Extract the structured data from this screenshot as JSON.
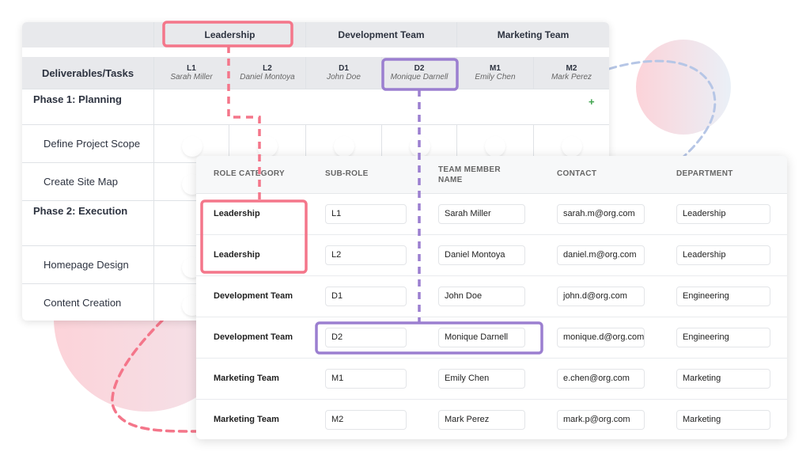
{
  "matrix": {
    "groups": [
      "Leadership",
      "Development Team",
      "Marketing Team"
    ],
    "tasks_header": "Deliverables/Tasks",
    "roles": [
      {
        "code": "L1",
        "name": "Sarah Miller"
      },
      {
        "code": "L2",
        "name": "Daniel Montoya"
      },
      {
        "code": "D1",
        "name": "John Doe"
      },
      {
        "code": "D2",
        "name": "Monique Darnell"
      },
      {
        "code": "M1",
        "name": "Emily Chen"
      },
      {
        "code": "M2",
        "name": "Mark Perez"
      }
    ],
    "rows": [
      {
        "label": "Phase 1: Planning",
        "phase": true
      },
      {
        "label": "Define Project Scope"
      },
      {
        "label": "Create Site Map"
      },
      {
        "label": "Phase 2: Execution",
        "phase": true
      },
      {
        "label": "Homepage Design"
      },
      {
        "label": "Content Creation"
      }
    ],
    "add_icon": "+",
    "accent_add": "#3fa34d"
  },
  "roster": {
    "headers": [
      "ROLE CATEGORY",
      "SUB-ROLE",
      "TEAM MEMBER NAME",
      "CONTACT",
      "DEPARTMENT"
    ],
    "rows": [
      {
        "category": "Leadership",
        "sub_role": "L1",
        "name": "Sarah Miller",
        "contact": "sarah.m@org.com",
        "department": "Leadership"
      },
      {
        "category": "Leadership",
        "sub_role": "L2",
        "name": "Daniel Montoya",
        "contact": "daniel.m@org.com",
        "department": "Leadership"
      },
      {
        "category": "Development Team",
        "sub_role": "D1",
        "name": "John Doe",
        "contact": "john.d@org.com",
        "department": "Engineering"
      },
      {
        "category": "Development Team",
        "sub_role": "D2",
        "name": "Monique Darnell",
        "contact": "monique.d@org.com",
        "department": "Engineering"
      },
      {
        "category": "Marketing Team",
        "sub_role": "M1",
        "name": "Emily Chen",
        "contact": "e.chen@org.com",
        "department": "Marketing"
      },
      {
        "category": "Marketing Team",
        "sub_role": "M2",
        "name": "Mark Perez",
        "contact": "mark.p@org.com",
        "department": "Marketing"
      }
    ]
  },
  "colors": {
    "highlight_pink": "#f4768a",
    "highlight_purple": "#9b7fd0"
  }
}
